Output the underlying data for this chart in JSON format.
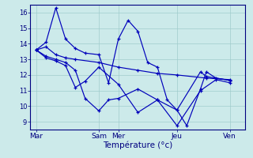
{
  "background_color": "#cceaea",
  "grid_color": "#a0cccc",
  "line_color": "#0000bb",
  "ylim": [
    8.5,
    16.5
  ],
  "yticks": [
    9,
    10,
    11,
    12,
    13,
    14,
    15,
    16
  ],
  "xlabel": "Température (°c)",
  "xlim": [
    0,
    11.0
  ],
  "x_tick_labels": [
    "Mar",
    "Sam",
    "Mer",
    "Jeu",
    "Ven"
  ],
  "x_tick_positions": [
    0.3,
    3.5,
    4.5,
    7.5,
    10.2
  ],
  "series": [
    {
      "x": [
        0.3,
        0.8,
        1.3,
        1.8,
        2.3,
        3.5,
        4.5,
        5.5,
        6.5,
        7.5,
        9.0,
        10.2
      ],
      "y": [
        13.6,
        13.8,
        13.3,
        13.1,
        13.0,
        12.8,
        12.5,
        12.3,
        12.1,
        12.0,
        11.8,
        11.7
      ]
    },
    {
      "x": [
        0.3,
        0.8,
        1.3,
        1.8,
        2.3,
        2.8,
        3.5,
        4.0,
        4.5,
        5.0,
        5.5,
        6.0,
        6.5,
        7.0,
        7.5,
        8.0,
        8.7,
        9.0,
        9.5,
        10.2
      ],
      "y": [
        13.6,
        14.1,
        16.3,
        14.3,
        13.7,
        13.4,
        13.3,
        11.5,
        14.3,
        15.5,
        14.8,
        12.8,
        12.5,
        10.4,
        9.75,
        8.75,
        11.1,
        12.2,
        11.8,
        11.65
      ]
    },
    {
      "x": [
        0.3,
        0.8,
        1.3,
        1.8,
        2.3,
        2.8,
        3.5,
        4.0,
        4.5,
        5.5,
        6.5,
        7.5,
        8.7,
        9.0,
        10.2
      ],
      "y": [
        13.6,
        13.2,
        13.0,
        12.8,
        12.3,
        10.5,
        9.7,
        10.4,
        10.5,
        11.1,
        10.4,
        9.75,
        12.2,
        11.9,
        11.65
      ]
    },
    {
      "x": [
        0.3,
        0.8,
        1.3,
        1.8,
        2.3,
        2.8,
        3.5,
        4.5,
        5.5,
        6.5,
        7.5,
        8.7,
        9.5,
        10.2
      ],
      "y": [
        13.6,
        13.1,
        12.9,
        12.6,
        11.2,
        11.6,
        12.5,
        11.4,
        9.6,
        10.4,
        8.75,
        11.0,
        11.7,
        11.5
      ]
    }
  ]
}
